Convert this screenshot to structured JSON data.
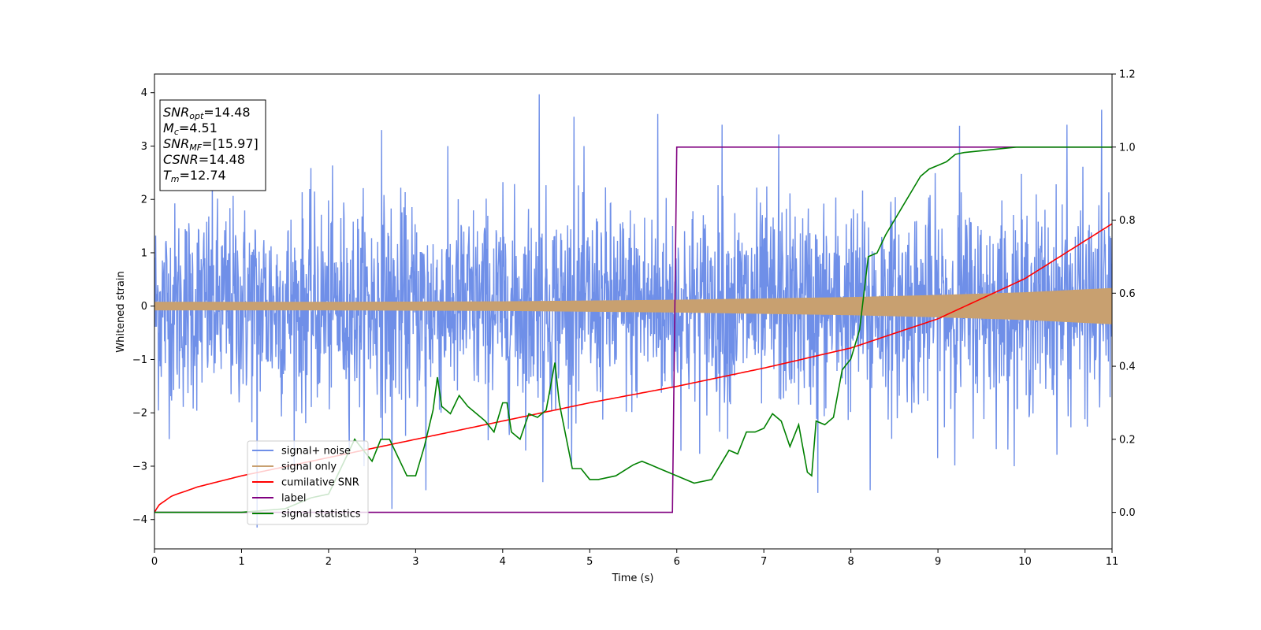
{
  "chart_data": {
    "type": "line",
    "xlabel": "Time (s)",
    "ylabel": "Whitened strain",
    "xlim": [
      0,
      11
    ],
    "ylim_left": [
      -4.55,
      4.35
    ],
    "ylim_right": [
      -0.1,
      1.2
    ],
    "xticks": [
      "0",
      "1",
      "2",
      "3",
      "4",
      "5",
      "6",
      "7",
      "8",
      "9",
      "10",
      "11"
    ],
    "yticks_left": [
      "4",
      "3",
      "2",
      "1",
      "0",
      "−1",
      "−2",
      "−3",
      "−4"
    ],
    "yticks_right": [
      "1.2",
      "1.0",
      "0.8",
      "0.6",
      "0.4",
      "0.2",
      "0.0"
    ],
    "grid": false,
    "legend_position": "lower-left",
    "info_box": [
      {
        "base": "SNR",
        "sub": "opt",
        "value": "=14.48"
      },
      {
        "base": "M",
        "sub": "c",
        "value": "=4.51"
      },
      {
        "base": "SNR",
        "sub": "MF",
        "value": "=[15.97]"
      },
      {
        "base": "CSNR",
        "sub": "",
        "value": "=14.48"
      },
      {
        "base": "T",
        "sub": "m",
        "value": "=12.74"
      }
    ],
    "series": [
      {
        "name": "signal+ noise",
        "color": "#6f8fe8",
        "axis": "left",
        "kind": "noise",
        "amplitude_typical": 1.0,
        "peaks": [
          {
            "x": 4.42,
            "y": 3.97
          },
          {
            "x": 10.88,
            "y": 3.68
          },
          {
            "x": 5.78,
            "y": 3.6
          },
          {
            "x": 2.61,
            "y": 3.3
          },
          {
            "x": 4.82,
            "y": 3.55
          },
          {
            "x": 6.52,
            "y": 3.4
          },
          {
            "x": 7.17,
            "y": 3.22
          },
          {
            "x": 9.25,
            "y": 3.38
          },
          {
            "x": 10.48,
            "y": 3.4
          },
          {
            "x": 1.18,
            "y": -4.15
          },
          {
            "x": 2.73,
            "y": -3.8
          },
          {
            "x": 8.22,
            "y": -3.45
          },
          {
            "x": 7.62,
            "y": -3.5
          },
          {
            "x": 3.12,
            "y": -3.45
          },
          {
            "x": 4.46,
            "y": -3.3
          }
        ]
      },
      {
        "name": "signal only",
        "color": "#c8a070",
        "axis": "left",
        "kind": "envelope",
        "envelope": [
          {
            "x": 0,
            "y": 0.08
          },
          {
            "x": 2,
            "y": 0.08
          },
          {
            "x": 4,
            "y": 0.09
          },
          {
            "x": 6,
            "y": 0.12
          },
          {
            "x": 8,
            "y": 0.17
          },
          {
            "x": 9,
            "y": 0.21
          },
          {
            "x": 10,
            "y": 0.26
          },
          {
            "x": 11,
            "y": 0.34
          }
        ]
      },
      {
        "name": "cumilative SNR",
        "color": "#ff0000",
        "axis": "right",
        "x": [
          0,
          0.05,
          0.2,
          0.5,
          1,
          2,
          3,
          4,
          5,
          6,
          7,
          8,
          9,
          10,
          11
        ],
        "y": [
          0.0,
          0.02,
          0.045,
          0.07,
          0.1,
          0.15,
          0.2,
          0.25,
          0.3,
          0.345,
          0.395,
          0.45,
          0.53,
          0.64,
          0.79
        ]
      },
      {
        "name": "label",
        "color": "#800080",
        "axis": "right",
        "x": [
          0,
          5.95,
          6.0,
          11
        ],
        "y": [
          0,
          0,
          1,
          1
        ]
      },
      {
        "name": "signal statistics",
        "color": "#008000",
        "axis": "right",
        "x": [
          0,
          1.0,
          1.5,
          1.8,
          2.0,
          2.2,
          2.3,
          2.4,
          2.5,
          2.6,
          2.7,
          2.8,
          2.9,
          3.0,
          3.1,
          3.2,
          3.25,
          3.3,
          3.4,
          3.5,
          3.6,
          3.7,
          3.8,
          3.9,
          4.0,
          4.05,
          4.1,
          4.2,
          4.3,
          4.4,
          4.5,
          4.6,
          4.65,
          4.7,
          4.8,
          4.9,
          5.0,
          5.1,
          5.3,
          5.5,
          5.6,
          5.7,
          5.8,
          5.9,
          6.0,
          6.2,
          6.4,
          6.5,
          6.6,
          6.7,
          6.8,
          6.9,
          7.0,
          7.1,
          7.2,
          7.3,
          7.4,
          7.5,
          7.55,
          7.6,
          7.7,
          7.8,
          7.9,
          8.0,
          8.1,
          8.2,
          8.3,
          8.4,
          8.5,
          8.6,
          8.7,
          8.8,
          8.9,
          9.0,
          9.1,
          9.2,
          9.3,
          9.5,
          9.7,
          9.9,
          10.2,
          10.5,
          11.0
        ],
        "y": [
          0,
          0.0,
          0.01,
          0.04,
          0.05,
          0.15,
          0.2,
          0.17,
          0.14,
          0.2,
          0.2,
          0.15,
          0.1,
          0.1,
          0.18,
          0.28,
          0.37,
          0.29,
          0.27,
          0.32,
          0.29,
          0.27,
          0.25,
          0.22,
          0.3,
          0.3,
          0.22,
          0.2,
          0.27,
          0.26,
          0.28,
          0.41,
          0.3,
          0.24,
          0.12,
          0.12,
          0.09,
          0.09,
          0.1,
          0.13,
          0.14,
          0.13,
          0.12,
          0.11,
          0.1,
          0.08,
          0.09,
          0.13,
          0.17,
          0.16,
          0.22,
          0.22,
          0.23,
          0.27,
          0.25,
          0.18,
          0.24,
          0.11,
          0.1,
          0.25,
          0.24,
          0.26,
          0.39,
          0.42,
          0.5,
          0.7,
          0.71,
          0.76,
          0.8,
          0.84,
          0.88,
          0.92,
          0.94,
          0.95,
          0.96,
          0.98,
          0.985,
          0.99,
          0.995,
          1.0,
          1.0,
          1.0,
          1.0
        ]
      }
    ]
  }
}
